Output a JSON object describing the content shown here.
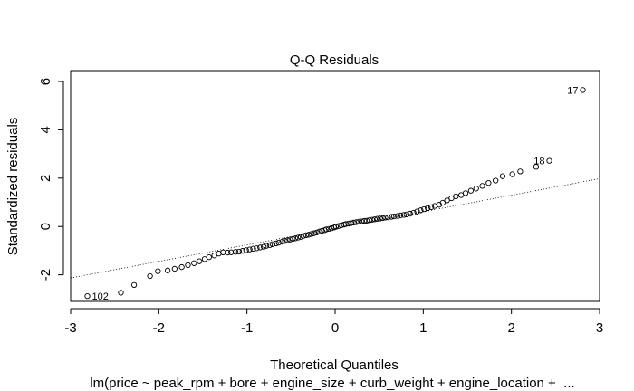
{
  "chart_data": {
    "type": "scatter",
    "title": "Q-Q Residuals",
    "xlabel": "Theoretical Quantiles",
    "ylabel": "Standardized residuals",
    "subtitle": "lm(price ~ peak_rpm + bore + engine_size + curb_weight + engine_location +  ...",
    "xlim": [
      -3,
      3
    ],
    "ylim": [
      -3.1,
      6.45
    ],
    "x_ticks": [
      -3,
      -2,
      -1,
      0,
      1,
      2,
      3
    ],
    "y_ticks": [
      -2,
      0,
      2,
      4,
      6
    ],
    "x_tick_labels": [
      "-3",
      "-2",
      "-1",
      "0",
      "1",
      "2",
      "3"
    ],
    "y_tick_labels": [
      "-2",
      "0",
      "2",
      "4",
      "6"
    ],
    "reference_line": {
      "style": "dotted",
      "from": [
        -3,
        -2.13
      ],
      "to": [
        3,
        1.98
      ]
    },
    "labeled_points": [
      {
        "label": "17",
        "x": 2.81,
        "y": 5.65,
        "side": "left"
      },
      {
        "label": "18",
        "x": 2.43,
        "y": 2.72,
        "side": "left"
      },
      {
        "label": "102",
        "x": -2.81,
        "y": -2.88,
        "side": "right"
      }
    ],
    "points": [
      [
        -2.81,
        -2.88
      ],
      [
        -2.43,
        -2.74
      ],
      [
        -2.28,
        -2.42
      ],
      [
        -2.1,
        -2.05
      ],
      [
        -2.01,
        -1.85
      ],
      [
        -1.9,
        -1.82
      ],
      [
        -1.82,
        -1.75
      ],
      [
        -1.74,
        -1.68
      ],
      [
        -1.67,
        -1.6
      ],
      [
        -1.6,
        -1.52
      ],
      [
        -1.54,
        -1.44
      ],
      [
        -1.48,
        -1.35
      ],
      [
        -1.43,
        -1.27
      ],
      [
        -1.37,
        -1.2
      ],
      [
        -1.32,
        -1.12
      ],
      [
        -1.27,
        -1.07
      ],
      [
        -1.22,
        -1.08
      ],
      [
        -1.18,
        -1.07
      ],
      [
        -1.13,
        -1.05
      ],
      [
        -1.09,
        -1.04
      ],
      [
        -1.05,
        -1.01
      ],
      [
        -1.01,
        -0.98
      ],
      [
        -0.97,
        -0.95
      ],
      [
        -0.93,
        -0.92
      ],
      [
        -0.89,
        -0.9
      ],
      [
        -0.85,
        -0.87
      ],
      [
        -0.81,
        -0.84
      ],
      [
        -0.78,
        -0.8
      ],
      [
        -0.74,
        -0.77
      ],
      [
        -0.71,
        -0.73
      ],
      [
        -0.67,
        -0.7
      ],
      [
        -0.64,
        -0.67
      ],
      [
        -0.6,
        -0.63
      ],
      [
        -0.57,
        -0.6
      ],
      [
        -0.54,
        -0.57
      ],
      [
        -0.51,
        -0.54
      ],
      [
        -0.48,
        -0.51
      ],
      [
        -0.45,
        -0.49
      ],
      [
        -0.42,
        -0.46
      ],
      [
        -0.39,
        -0.43
      ],
      [
        -0.36,
        -0.39
      ],
      [
        -0.33,
        -0.36
      ],
      [
        -0.3,
        -0.34
      ],
      [
        -0.27,
        -0.31
      ],
      [
        -0.24,
        -0.28
      ],
      [
        -0.21,
        -0.25
      ],
      [
        -0.18,
        -0.21
      ],
      [
        -0.15,
        -0.18
      ],
      [
        -0.12,
        -0.15
      ],
      [
        -0.1,
        -0.12
      ],
      [
        -0.07,
        -0.1
      ],
      [
        -0.04,
        -0.07
      ],
      [
        -0.01,
        -0.04
      ],
      [
        0.01,
        -0.01
      ],
      [
        0.04,
        0.02
      ],
      [
        0.07,
        0.05
      ],
      [
        0.1,
        0.08
      ],
      [
        0.12,
        0.1
      ],
      [
        0.15,
        0.12
      ],
      [
        0.18,
        0.14
      ],
      [
        0.21,
        0.16
      ],
      [
        0.24,
        0.18
      ],
      [
        0.27,
        0.2
      ],
      [
        0.3,
        0.21
      ],
      [
        0.33,
        0.23
      ],
      [
        0.36,
        0.24
      ],
      [
        0.39,
        0.26
      ],
      [
        0.42,
        0.28
      ],
      [
        0.45,
        0.3
      ],
      [
        0.48,
        0.32
      ],
      [
        0.51,
        0.33
      ],
      [
        0.54,
        0.35
      ],
      [
        0.57,
        0.37
      ],
      [
        0.6,
        0.38
      ],
      [
        0.64,
        0.4
      ],
      [
        0.67,
        0.42
      ],
      [
        0.71,
        0.44
      ],
      [
        0.74,
        0.46
      ],
      [
        0.78,
        0.48
      ],
      [
        0.81,
        0.5
      ],
      [
        0.85,
        0.53
      ],
      [
        0.89,
        0.57
      ],
      [
        0.93,
        0.62
      ],
      [
        0.97,
        0.67
      ],
      [
        1.01,
        0.72
      ],
      [
        1.05,
        0.76
      ],
      [
        1.09,
        0.8
      ],
      [
        1.13,
        0.85
      ],
      [
        1.18,
        0.9
      ],
      [
        1.22,
        0.98
      ],
      [
        1.27,
        1.08
      ],
      [
        1.32,
        1.17
      ],
      [
        1.37,
        1.25
      ],
      [
        1.43,
        1.3
      ],
      [
        1.48,
        1.38
      ],
      [
        1.54,
        1.48
      ],
      [
        1.6,
        1.57
      ],
      [
        1.67,
        1.68
      ],
      [
        1.74,
        1.8
      ],
      [
        1.82,
        1.9
      ],
      [
        1.9,
        2.08
      ],
      [
        2.01,
        2.16
      ],
      [
        2.1,
        2.28
      ],
      [
        2.28,
        2.47
      ],
      [
        2.43,
        2.72
      ],
      [
        2.81,
        5.65
      ]
    ]
  }
}
